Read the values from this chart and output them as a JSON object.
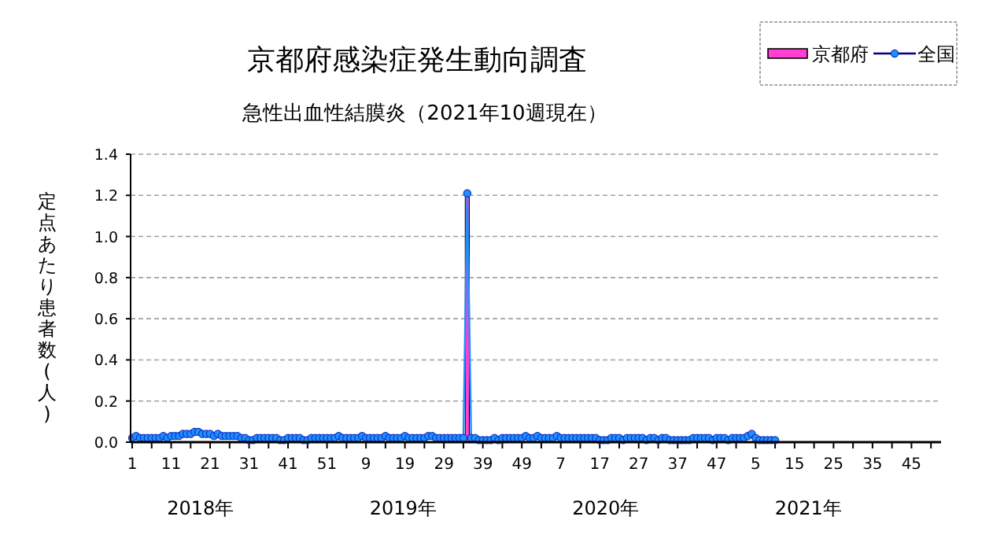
{
  "chart_data": {
    "type": "bar",
    "title": "京都府感染症発生動向調査",
    "subtitle": "急性出血性結膜炎（2021年10週現在）",
    "ylabel": "定点あたり患者数(人)",
    "categories": [
      "1",
      null,
      null,
      null,
      null,
      null,
      null,
      null,
      null,
      null,
      "11",
      null,
      null,
      null,
      null,
      null,
      null,
      null,
      null,
      null,
      "21",
      null,
      null,
      null,
      null,
      null,
      null,
      null,
      null,
      null,
      "31",
      null,
      null,
      null,
      null,
      null,
      null,
      null,
      null,
      null,
      "41",
      null,
      null,
      null,
      null,
      null,
      null,
      null,
      null,
      null,
      "51",
      null,
      null,
      null,
      null,
      null,
      null,
      null,
      null,
      null,
      "9",
      null,
      null,
      null,
      null,
      null,
      null,
      null,
      null,
      null,
      "19",
      null,
      null,
      null,
      null,
      null,
      null,
      null,
      null,
      null,
      "29",
      null,
      null,
      null,
      null,
      null,
      null,
      null,
      null,
      null,
      "39",
      null,
      null,
      null,
      null,
      null,
      null,
      null,
      null,
      null,
      "49",
      null,
      null,
      null,
      null,
      null,
      null,
      null,
      null,
      null,
      "7",
      null,
      null,
      null,
      null,
      null,
      null,
      null,
      null,
      null,
      "17",
      null,
      null,
      null,
      null,
      null,
      null,
      null,
      null,
      null,
      "27",
      null,
      null,
      null,
      null,
      null,
      null,
      null,
      null,
      null,
      "37",
      null,
      null,
      null,
      null,
      null,
      null,
      null,
      null,
      null,
      "47",
      null,
      null,
      null,
      null,
      null,
      null,
      null,
      null,
      null,
      "5",
      null,
      null,
      null,
      null,
      null,
      null,
      null,
      null,
      null,
      "15",
      null,
      null,
      null,
      null,
      null,
      null,
      null,
      null,
      null,
      "25",
      null,
      null,
      null,
      null,
      null,
      null,
      null,
      null,
      null,
      "35",
      null,
      null,
      null,
      null,
      null,
      null,
      null,
      null,
      null,
      "45",
      null,
      null,
      null,
      null,
      null,
      null,
      null
    ],
    "series": [
      {
        "name": "京都府",
        "color": "#ff40d0",
        "values": [
          null,
          0,
          0,
          0,
          0,
          0,
          0,
          null,
          0,
          0,
          0,
          0,
          0,
          0,
          0,
          0,
          0,
          0,
          0,
          null,
          0,
          0,
          0,
          0,
          0,
          0,
          0,
          0,
          0,
          0,
          0,
          0,
          0,
          0,
          0,
          0,
          0,
          0,
          0,
          0,
          0,
          0,
          0,
          0,
          0,
          0,
          0,
          0,
          0,
          0,
          0,
          0,
          0,
          0,
          0,
          0,
          0,
          0,
          0,
          0,
          0,
          0,
          0,
          0,
          0,
          0,
          0,
          0,
          0,
          0,
          0,
          0,
          0,
          0,
          0,
          0,
          0,
          0,
          0,
          0,
          0,
          0,
          0,
          0,
          0,
          0,
          1.2,
          0,
          0,
          0,
          0,
          0,
          0,
          0,
          0,
          0,
          0,
          0,
          0,
          0,
          0,
          0,
          null,
          0,
          0,
          0,
          0,
          0,
          0,
          0,
          0,
          0,
          0,
          0,
          0,
          0,
          0,
          0,
          0,
          0,
          0,
          0,
          0,
          0,
          0,
          0,
          0,
          0,
          0,
          0,
          0,
          0,
          0,
          0,
          0,
          0,
          0,
          0,
          0,
          0,
          0,
          0,
          0,
          0,
          0,
          0,
          0,
          0,
          0,
          0,
          0,
          0,
          0,
          0,
          0,
          0,
          0,
          0,
          0,
          0,
          0,
          0,
          0,
          0,
          0,
          0,
          null,
          null,
          null,
          null,
          null,
          null,
          null,
          null,
          null,
          null,
          null,
          null,
          null,
          null,
          null,
          null,
          null,
          null,
          null,
          null,
          null,
          null,
          null,
          null,
          null,
          null,
          null,
          null,
          null,
          null,
          null,
          null,
          null,
          null,
          null,
          null,
          null,
          null,
          null,
          null,
          null,
          null
        ]
      },
      {
        "name": "全国",
        "type": "line",
        "color": "#1e8fff",
        "values": [
          0.02,
          0.03,
          0.02,
          0.02,
          0.02,
          0.02,
          0.02,
          0.02,
          0.03,
          0.02,
          0.03,
          0.03,
          0.03,
          0.04,
          0.04,
          0.04,
          0.05,
          0.05,
          0.04,
          0.04,
          0.04,
          0.03,
          0.04,
          0.03,
          0.03,
          0.03,
          0.03,
          0.03,
          0.02,
          0.02,
          0.01,
          0.01,
          0.02,
          0.02,
          0.02,
          0.02,
          0.02,
          0.02,
          0.01,
          0.01,
          0.02,
          0.02,
          0.02,
          0.02,
          0.01,
          0.01,
          0.02,
          0.02,
          0.02,
          0.02,
          0.02,
          0.02,
          0.02,
          0.03,
          0.02,
          0.02,
          0.02,
          0.02,
          0.02,
          0.03,
          0.02,
          0.02,
          0.02,
          0.02,
          0.02,
          0.03,
          0.02,
          0.02,
          0.02,
          0.02,
          0.03,
          0.02,
          0.02,
          0.02,
          0.02,
          0.02,
          0.03,
          0.03,
          0.02,
          0.02,
          0.02,
          0.02,
          0.02,
          0.02,
          0.02,
          0.02,
          1.21,
          0.02,
          0.02,
          0.01,
          0.01,
          0.01,
          0.01,
          0.02,
          0.01,
          0.02,
          0.02,
          0.02,
          0.02,
          0.02,
          0.02,
          0.03,
          0.02,
          0.02,
          0.03,
          0.02,
          0.02,
          0.02,
          0.02,
          0.03,
          0.02,
          0.02,
          0.02,
          0.02,
          0.02,
          0.02,
          0.02,
          0.02,
          0.02,
          0.02,
          0.01,
          0.01,
          0.01,
          0.02,
          0.02,
          0.02,
          0.01,
          0.02,
          0.02,
          0.02,
          0.02,
          0.02,
          0.01,
          0.02,
          0.02,
          0.01,
          0.02,
          0.02,
          0.01,
          0.01,
          0.01,
          0.01,
          0.01,
          0.01,
          0.02,
          0.02,
          0.02,
          0.02,
          0.02,
          0.01,
          0.02,
          0.02,
          0.02,
          0.01,
          0.02,
          0.02,
          0.02,
          0.02,
          0.03,
          0.04,
          0.02,
          0.01,
          0.01,
          0.01,
          0.01,
          0.01,
          null,
          null,
          null,
          null,
          null,
          null,
          null,
          null,
          null,
          null,
          null,
          null,
          null,
          null,
          null,
          null,
          null,
          null,
          null,
          null,
          null,
          null,
          null,
          null,
          null,
          null,
          null,
          null,
          null,
          null,
          null,
          null,
          null,
          null,
          null,
          null,
          null,
          null,
          null,
          null,
          null,
          null
        ]
      }
    ],
    "ylim": [
      0,
      1.4
    ],
    "yticks": [
      {
        "value": 0,
        "label": "0.0"
      },
      0.2,
      0.4,
      0.6,
      0.8,
      {
        "value": 1,
        "label": "1.0"
      },
      1.2,
      1.4
    ],
    "grid": "y",
    "legend": "top right",
    "marker": "circle",
    "annotations": [
      "2018年",
      "2019年",
      "2020年",
      "2021年"
    ]
  }
}
